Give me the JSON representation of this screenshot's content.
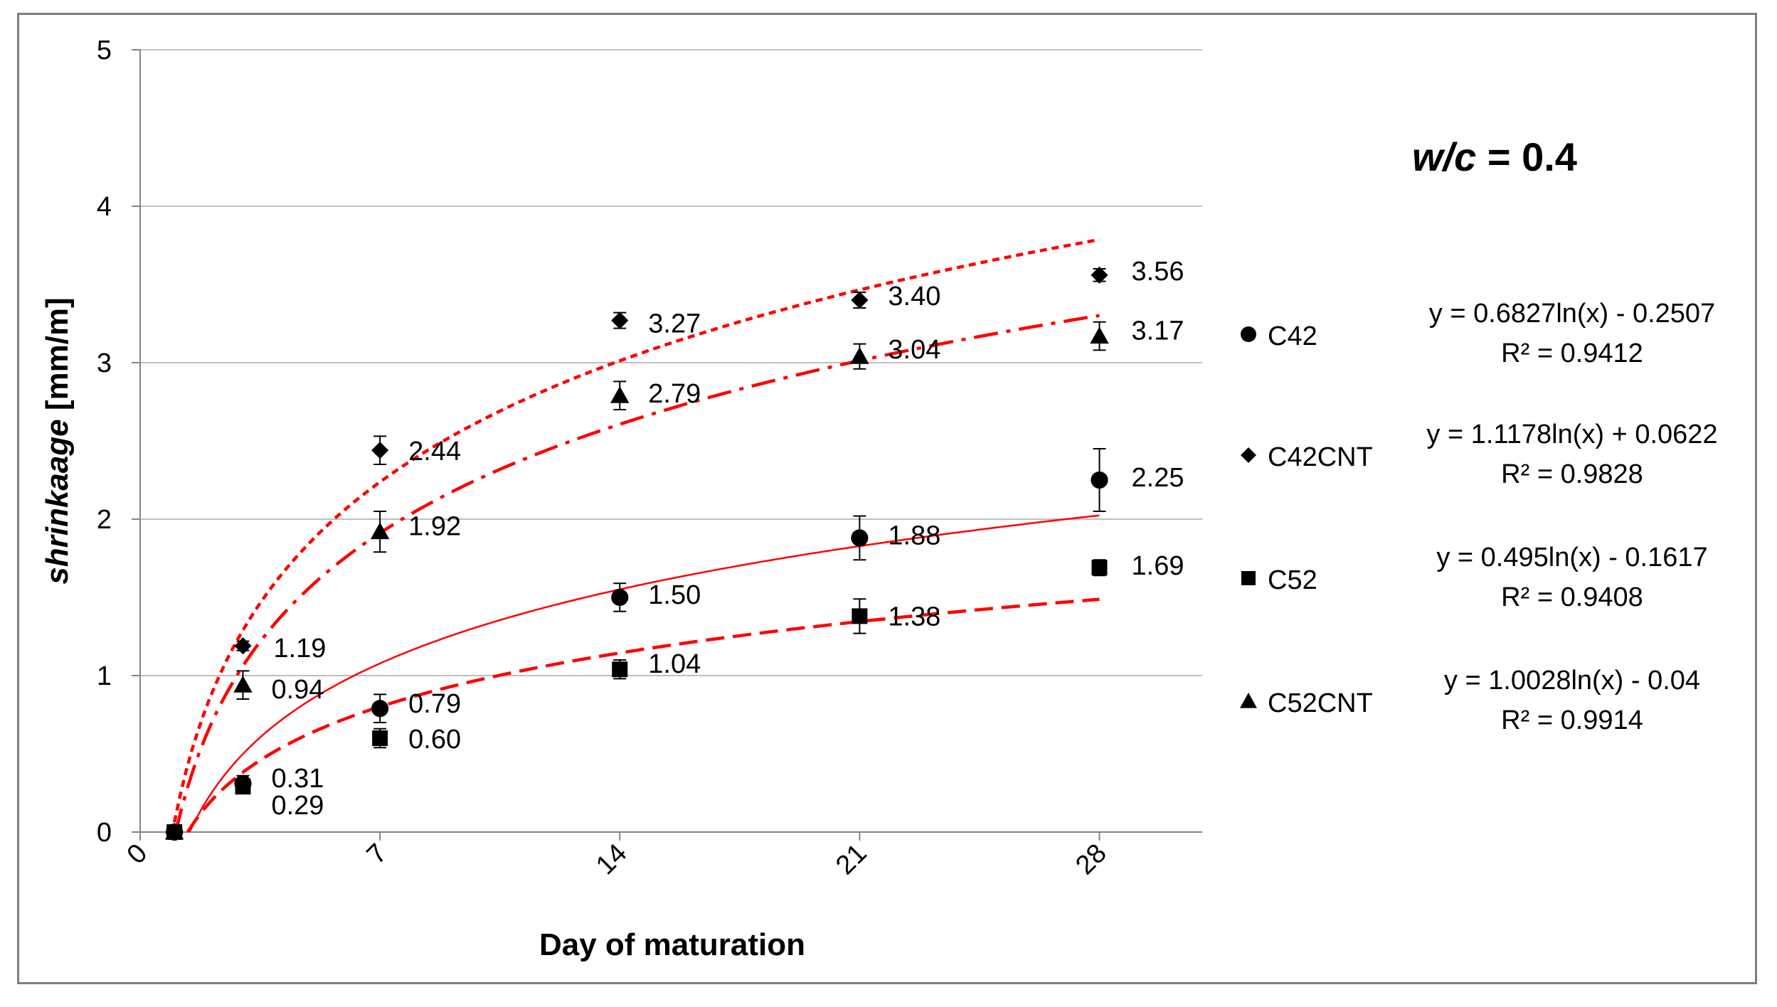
{
  "chart_data": {
    "type": "scatter",
    "title": "w/c = 0.4",
    "title_parts": {
      "italic": "w/c",
      "rest": " = 0.4"
    },
    "xlabel": "Day of maturation",
    "ylabel": "shrinkaage [mm/m]",
    "ylabel_parts": {
      "italic": "shrinkaage",
      "rest": " [mm/m]"
    },
    "xlim": [
      0,
      31
    ],
    "ylim": [
      0,
      5
    ],
    "xticks": [
      "0",
      "7",
      "14",
      "21",
      "28"
    ],
    "xtick_values": [
      0,
      7,
      14,
      21,
      28
    ],
    "yticks": [
      "0",
      "1",
      "2",
      "3",
      "4",
      "5"
    ],
    "ytick_values": [
      0,
      1,
      2,
      3,
      4,
      5
    ],
    "grid": "horizontal",
    "legend_position": "right",
    "series": [
      {
        "name": "C42",
        "marker": "circle",
        "x": [
          1,
          3,
          7,
          14,
          21,
          28
        ],
        "y": [
          0,
          0.31,
          0.79,
          1.5,
          1.88,
          2.25
        ],
        "error": [
          0,
          0.05,
          0.09,
          0.09,
          0.14,
          0.2
        ],
        "labels": [
          "",
          "0.31",
          "0.79",
          "1.50",
          "1.88",
          "2.25"
        ],
        "trend": {
          "a": 0.6827,
          "b": -0.2507,
          "style": "solid"
        },
        "equation": "y = 0.6827ln(x) - 0.2507",
        "r2": "R² = 0.9412"
      },
      {
        "name": "C42CNT",
        "marker": "diamond",
        "x": [
          1,
          3,
          7,
          14,
          21,
          28
        ],
        "y": [
          0,
          1.19,
          2.44,
          3.27,
          3.4,
          3.56
        ],
        "error": [
          0,
          0.03,
          0.09,
          0.05,
          0.05,
          0.04
        ],
        "labels": [
          "",
          "1.19",
          "2.44",
          "3.27",
          "3.40",
          "3.56"
        ],
        "trend": {
          "a": 1.1178,
          "b": 0.0622,
          "style": "dotted"
        },
        "equation": "y = 1.1178ln(x) + 0.0622",
        "r2": "R² = 0.9828"
      },
      {
        "name": "C52",
        "marker": "square",
        "x": [
          1,
          3,
          7,
          14,
          21,
          28
        ],
        "y": [
          0,
          0.29,
          0.6,
          1.04,
          1.38,
          1.69
        ],
        "error": [
          0,
          0.03,
          0.06,
          0.06,
          0.11,
          0.05
        ],
        "labels": [
          "",
          "0.29",
          "0.60",
          "1.04",
          "1.38",
          "1.69"
        ],
        "trend": {
          "a": 0.495,
          "b": -0.1617,
          "style": "dashed"
        },
        "equation": "y = 0.495ln(x) - 0.1617",
        "r2": "R² = 0.9408"
      },
      {
        "name": "C52CNT",
        "marker": "triangle",
        "x": [
          1,
          3,
          7,
          14,
          21,
          28
        ],
        "y": [
          0,
          0.94,
          1.92,
          2.79,
          3.04,
          3.17
        ],
        "error": [
          0,
          0.09,
          0.13,
          0.09,
          0.08,
          0.09
        ],
        "labels": [
          "",
          "0.94",
          "1.92",
          "2.79",
          "3.04",
          "3.17"
        ],
        "trend": {
          "a": 1.0028,
          "b": -0.04,
          "style": "dashdot"
        },
        "equation": "y = 1.0028ln(x) - 0.04",
        "r2": "R² = 0.9914"
      }
    ],
    "colors": {
      "trend": "#ff0000",
      "marker": "#000000",
      "grid": "#bfbfbf",
      "axis": "#868686",
      "frame": "#7f7f7f"
    }
  }
}
